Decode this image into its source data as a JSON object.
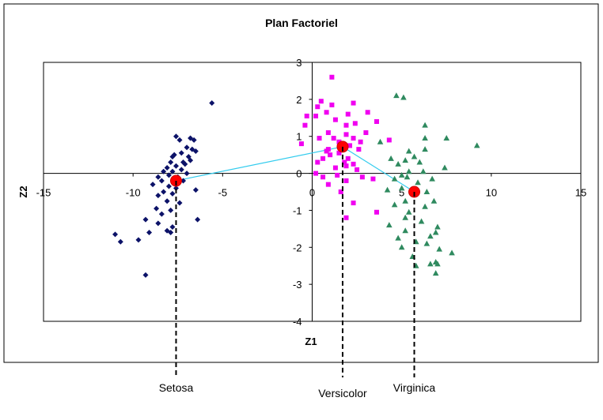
{
  "chart_data": {
    "type": "scatter",
    "title": "Plan Factoriel",
    "xlabel": "Z1",
    "ylabel": "Z2",
    "xlim": [
      -15,
      15
    ],
    "ylim": [
      -4,
      3
    ],
    "x_ticks": [
      -15,
      -10,
      -5,
      0,
      5,
      10,
      15
    ],
    "y_ticks": [
      -4,
      -3,
      -2,
      -1,
      0,
      1,
      2,
      3
    ],
    "grid": false,
    "legend": "none",
    "colors": {
      "setosa": "#0c1268",
      "versicolor": "#f000f0",
      "virginica": "#2f8a5f",
      "centroid": "#ff0000",
      "link": "#33ccee"
    },
    "series": [
      {
        "marker": "diamond",
        "points": [
          [
            -5.6,
            1.9
          ],
          [
            -7.6,
            1.0
          ],
          [
            -7.4,
            0.9
          ],
          [
            -6.8,
            0.95
          ],
          [
            -6.6,
            0.9
          ],
          [
            -7.0,
            0.7
          ],
          [
            -6.7,
            0.65
          ],
          [
            -6.5,
            0.6
          ],
          [
            -7.3,
            0.55
          ],
          [
            -7.7,
            0.5
          ],
          [
            -7.8,
            0.45
          ],
          [
            -6.9,
            0.45
          ],
          [
            -7.2,
            0.3
          ],
          [
            -6.8,
            0.35
          ],
          [
            -7.9,
            0.3
          ],
          [
            -7.1,
            0.25
          ],
          [
            -7.6,
            0.2
          ],
          [
            -8.1,
            0.15
          ],
          [
            -7.3,
            0.1
          ],
          [
            -7.8,
            0.05
          ],
          [
            -8.3,
            0.05
          ],
          [
            -7.0,
            0.0
          ],
          [
            -8.0,
            -0.05
          ],
          [
            -7.5,
            -0.1
          ],
          [
            -8.6,
            -0.1
          ],
          [
            -8.4,
            -0.2
          ],
          [
            -7.2,
            -0.2
          ],
          [
            -8.9,
            -0.3
          ],
          [
            -8.0,
            -0.35
          ],
          [
            -7.6,
            -0.4
          ],
          [
            -6.5,
            -0.45
          ],
          [
            -8.3,
            -0.5
          ],
          [
            -7.8,
            -0.55
          ],
          [
            -8.6,
            -0.6
          ],
          [
            -8.1,
            -0.75
          ],
          [
            -7.4,
            -0.8
          ],
          [
            -8.7,
            -0.95
          ],
          [
            -7.9,
            -1.0
          ],
          [
            -8.4,
            -1.1
          ],
          [
            -6.4,
            -1.25
          ],
          [
            -9.3,
            -1.25
          ],
          [
            -8.6,
            -1.35
          ],
          [
            -7.8,
            -1.45
          ],
          [
            -8.1,
            -1.55
          ],
          [
            -7.9,
            -1.6
          ],
          [
            -9.1,
            -1.6
          ],
          [
            -11.0,
            -1.65
          ],
          [
            -9.7,
            -1.8
          ],
          [
            -10.7,
            -1.85
          ],
          [
            -9.3,
            -2.75
          ]
        ]
      },
      {
        "marker": "square",
        "points": [
          [
            1.1,
            2.6
          ],
          [
            0.5,
            1.95
          ],
          [
            0.3,
            1.8
          ],
          [
            1.1,
            1.85
          ],
          [
            2.3,
            1.9
          ],
          [
            0.8,
            1.65
          ],
          [
            2.0,
            1.6
          ],
          [
            0.2,
            1.55
          ],
          [
            3.1,
            1.65
          ],
          [
            1.3,
            1.45
          ],
          [
            1.9,
            1.3
          ],
          [
            2.4,
            1.35
          ],
          [
            3.6,
            1.4
          ],
          [
            -0.4,
            1.3
          ],
          [
            0.9,
            1.1
          ],
          [
            1.9,
            1.05
          ],
          [
            3.0,
            1.1
          ],
          [
            -0.6,
            0.8
          ],
          [
            1.2,
            0.95
          ],
          [
            2.3,
            0.95
          ],
          [
            2.1,
            0.75
          ],
          [
            0.8,
            0.6
          ],
          [
            2.6,
            0.65
          ],
          [
            1.5,
            0.55
          ],
          [
            1.0,
            0.5
          ],
          [
            0.6,
            0.4
          ],
          [
            2.0,
            0.4
          ],
          [
            0.3,
            0.3
          ],
          [
            2.3,
            0.25
          ],
          [
            1.9,
            0.2
          ],
          [
            1.3,
            0.15
          ],
          [
            2.5,
            0.1
          ],
          [
            0.2,
            0.0
          ],
          [
            1.4,
            -0.05
          ],
          [
            2.8,
            -0.1
          ],
          [
            0.6,
            -0.1
          ],
          [
            1.9,
            -0.2
          ],
          [
            3.4,
            -0.15
          ],
          [
            0.9,
            -0.3
          ],
          [
            1.6,
            -0.5
          ],
          [
            2.3,
            -0.8
          ],
          [
            1.9,
            -1.2
          ],
          [
            3.6,
            -1.05
          ],
          [
            4.3,
            0.9
          ],
          [
            0.4,
            0.95
          ],
          [
            -0.3,
            1.55
          ],
          [
            2.7,
            0.85
          ],
          [
            1.5,
            0.85
          ],
          [
            1.8,
            0.3
          ],
          [
            0.9,
            0.65
          ]
        ]
      },
      {
        "marker": "triangle",
        "points": [
          [
            4.7,
            2.1
          ],
          [
            5.1,
            2.05
          ],
          [
            6.3,
            1.3
          ],
          [
            7.5,
            0.95
          ],
          [
            9.2,
            0.75
          ],
          [
            6.3,
            0.95
          ],
          [
            3.8,
            0.85
          ],
          [
            6.3,
            0.65
          ],
          [
            5.4,
            0.6
          ],
          [
            4.4,
            0.4
          ],
          [
            5.2,
            0.35
          ],
          [
            5.7,
            0.45
          ],
          [
            6.0,
            0.3
          ],
          [
            7.4,
            0.15
          ],
          [
            4.8,
            0.25
          ],
          [
            5.4,
            0.05
          ],
          [
            6.2,
            0.05
          ],
          [
            5.3,
            -0.1
          ],
          [
            5.0,
            -0.05
          ],
          [
            4.6,
            -0.15
          ],
          [
            5.9,
            -0.25
          ],
          [
            6.7,
            -0.15
          ],
          [
            5.0,
            -0.4
          ],
          [
            4.2,
            -0.45
          ],
          [
            5.7,
            -0.55
          ],
          [
            6.4,
            -0.5
          ],
          [
            5.2,
            -0.75
          ],
          [
            6.8,
            -0.75
          ],
          [
            4.6,
            -0.85
          ],
          [
            5.4,
            -1.05
          ],
          [
            6.3,
            -0.9
          ],
          [
            6.1,
            -1.3
          ],
          [
            4.3,
            -1.4
          ],
          [
            7.0,
            -1.45
          ],
          [
            5.2,
            -1.55
          ],
          [
            6.9,
            -1.6
          ],
          [
            4.8,
            -1.75
          ],
          [
            6.6,
            -1.7
          ],
          [
            5.8,
            -1.85
          ],
          [
            6.4,
            -1.9
          ],
          [
            7.1,
            -2.05
          ],
          [
            5.0,
            -2.0
          ],
          [
            5.6,
            -2.25
          ],
          [
            7.8,
            -2.15
          ],
          [
            6.9,
            -2.4
          ],
          [
            6.6,
            -2.45
          ],
          [
            7.0,
            -2.45
          ],
          [
            5.8,
            -2.5
          ],
          [
            6.9,
            -2.7
          ],
          [
            5.2,
            -1.2
          ]
        ]
      }
    ],
    "centroids": [
      {
        "label": "Setosa",
        "x": -7.6,
        "y": -0.2
      },
      {
        "label": "Versicolor",
        "x": 1.7,
        "y": 0.72
      },
      {
        "label": "Virginica",
        "x": 5.7,
        "y": -0.5
      }
    ]
  }
}
